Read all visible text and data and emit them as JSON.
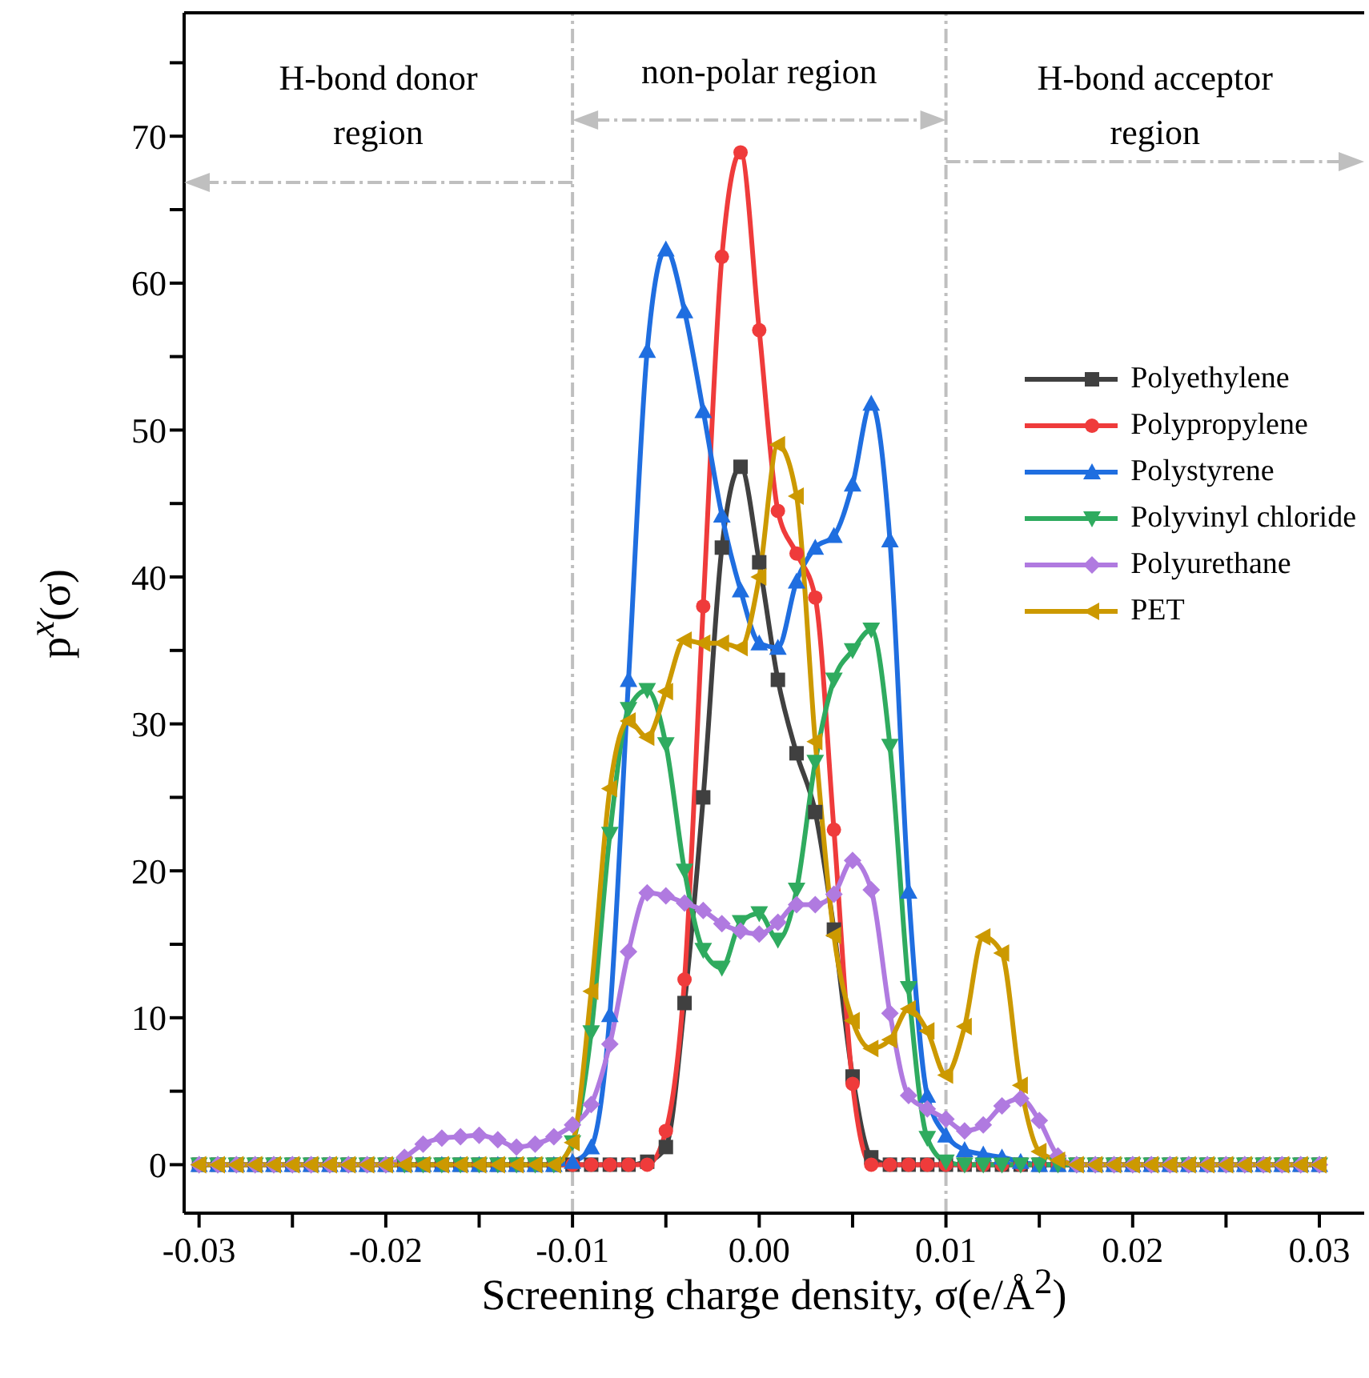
{
  "chart_data": {
    "type": "line",
    "xlabel": "Screening charge density, σ(e/Å$^{2}$)",
    "ylabel": "p$^{x}$(σ)",
    "x": [
      -0.03,
      -0.029,
      -0.028,
      -0.027,
      -0.026,
      -0.025,
      -0.024,
      -0.023,
      -0.022,
      -0.021,
      -0.02,
      -0.019,
      -0.018,
      -0.017,
      -0.016,
      -0.015,
      -0.014,
      -0.013,
      -0.012,
      -0.011,
      -0.01,
      -0.009,
      -0.008,
      -0.007,
      -0.006,
      -0.005,
      -0.004,
      -0.003,
      -0.002,
      -0.001,
      0,
      0.001,
      0.002,
      0.003,
      0.004,
      0.005,
      0.006,
      0.007,
      0.008,
      0.009,
      0.01,
      0.011,
      0.012,
      0.013,
      0.014,
      0.015,
      0.016,
      0.017,
      0.018,
      0.019,
      0.02,
      0.021,
      0.022,
      0.023,
      0.024,
      0.025,
      0.026,
      0.027,
      0.028,
      0.029,
      0.03
    ],
    "series": [
      {
        "name": "Polyethylene",
        "color": "#404040",
        "marker": "square",
        "values": [
          0,
          0,
          0,
          0,
          0,
          0,
          0,
          0,
          0,
          0,
          0,
          0,
          0,
          0,
          0,
          0,
          0,
          0,
          0,
          0,
          0,
          0,
          0,
          0,
          0.2,
          1.2,
          11,
          25,
          42,
          47.5,
          41,
          33,
          28,
          24,
          16,
          6,
          0.5,
          0,
          0,
          0,
          0,
          0,
          0,
          0,
          0,
          0,
          0,
          0,
          0,
          0,
          0,
          0,
          0,
          0,
          0,
          0,
          0,
          0,
          0,
          0,
          0
        ]
      },
      {
        "name": "Polypropylene",
        "color": "#ef3b3b",
        "marker": "circle",
        "values": [
          null,
          null,
          null,
          null,
          null,
          null,
          null,
          null,
          null,
          0,
          0,
          0,
          0,
          0,
          0,
          0,
          0,
          0,
          0,
          0,
          0,
          0,
          0,
          0,
          0,
          2.3,
          12.6,
          38,
          61.8,
          68.9,
          56.8,
          44.5,
          41.6,
          38.6,
          22.8,
          5.5,
          0,
          0,
          0,
          0,
          0,
          0,
          0,
          0,
          0,
          0,
          0,
          0,
          null,
          null,
          null,
          null,
          null,
          null,
          null,
          null,
          null,
          null,
          null,
          null,
          null
        ]
      },
      {
        "name": "Polystyrene",
        "color": "#1f6ee0",
        "marker": "triangle",
        "values": [
          0,
          0,
          0,
          0,
          0,
          0,
          0,
          0,
          0,
          0,
          0,
          0,
          0,
          0,
          0,
          0,
          0,
          0,
          0,
          0,
          0.2,
          1.2,
          10.2,
          33,
          55.4,
          62.3,
          58.1,
          51.3,
          44.2,
          39.1,
          35.5,
          35.2,
          39.7,
          42,
          42.8,
          46.3,
          51.8,
          42.5,
          18.6,
          4.7,
          2,
          1,
          0.7,
          0.5,
          0.2,
          0,
          0,
          0,
          0,
          0,
          0,
          0,
          0,
          0,
          0,
          0,
          0,
          0,
          0,
          0,
          0
        ]
      },
      {
        "name": "Polyvinyl chloride",
        "color": "#2fab5f",
        "marker": "triangle-down",
        "values": [
          0,
          0,
          0,
          0,
          0,
          0,
          0,
          0,
          0,
          0,
          0,
          0,
          0,
          0,
          0,
          0,
          0,
          0,
          0,
          0,
          1.5,
          9,
          22.5,
          31,
          32.3,
          28.6,
          20,
          14.6,
          13.4,
          16.5,
          17.1,
          15.3,
          18.7,
          27.4,
          33,
          35,
          36.4,
          28.5,
          12,
          1.8,
          0.2,
          0,
          0,
          0,
          0,
          0,
          0,
          0,
          0,
          0,
          0,
          0,
          0,
          0,
          0,
          0,
          0,
          0,
          0,
          0,
          0
        ]
      },
      {
        "name": "Polyurethane",
        "color": "#b07ae0",
        "marker": "diamond",
        "values": [
          0,
          0,
          0,
          0,
          0,
          0,
          0,
          0,
          0,
          0,
          0,
          0.5,
          1.4,
          1.8,
          1.9,
          2,
          1.7,
          1.2,
          1.4,
          1.9,
          2.7,
          4.1,
          8.2,
          14.5,
          18.5,
          18.3,
          17.8,
          17.3,
          16.4,
          15.9,
          15.7,
          16.5,
          17.7,
          17.7,
          18.4,
          20.7,
          18.7,
          10.3,
          4.7,
          3.8,
          3.1,
          2.3,
          2.7,
          4,
          4.5,
          3,
          0.6,
          0,
          0,
          0,
          0,
          0,
          0,
          0,
          0,
          0,
          0,
          0,
          0,
          0,
          0
        ]
      },
      {
        "name": "PET",
        "color": "#cc9900",
        "marker": "triangle-left",
        "values": [
          0,
          0,
          0,
          0,
          0,
          0,
          0,
          0,
          0,
          0,
          0,
          0,
          0,
          0,
          0,
          0,
          0,
          0,
          0,
          0,
          1.5,
          11.8,
          25.6,
          30.2,
          29.1,
          32.2,
          35.7,
          35.5,
          35.5,
          35.2,
          40,
          49,
          45.5,
          28.8,
          15.6,
          9.8,
          7.9,
          8.5,
          10.6,
          9.1,
          6.1,
          9.4,
          15.5,
          14.4,
          5.4,
          0.9,
          0.3,
          0,
          0,
          0,
          0,
          0,
          0,
          0,
          0,
          0,
          0,
          0,
          0,
          0,
          0
        ]
      }
    ],
    "xlim": [
      -0.0308,
      0.0324
    ],
    "xticks": [
      -0.03,
      {
        "value": -0.025,
        "label": null
      },
      -0.02,
      {
        "value": -0.015,
        "label": null
      },
      -0.01,
      {
        "value": -0.005,
        "label": null
      },
      {
        "value": 0,
        "label": "0.00"
      },
      {
        "value": 0.005,
        "label": null
      },
      0.01,
      {
        "value": 0.015,
        "label": null
      },
      0.02,
      {
        "value": 0.025,
        "label": null
      },
      0.03
    ],
    "ylim": [
      -3.3,
      78.4
    ],
    "yticks": [
      0,
      {
        "value": 5,
        "label": null
      },
      10,
      {
        "value": 15,
        "label": null
      },
      20,
      {
        "value": 25,
        "label": null
      },
      30,
      {
        "value": 35,
        "label": null
      },
      40,
      {
        "value": 45,
        "label": null
      },
      50,
      {
        "value": 55,
        "label": null
      },
      60,
      {
        "value": 65,
        "label": null
      },
      70,
      {
        "value": 75,
        "label": null
      }
    ],
    "ref_lines": [
      {
        "axis": "x",
        "value": -0.01,
        "color": "#bfbfbf",
        "line_style": "dashed"
      },
      {
        "axis": "x",
        "value": 0.01,
        "color": "#bfbfbf",
        "line_style": "dashed"
      }
    ],
    "annotations": [
      "H-bond donor region",
      "non-polar region",
      "H-bond acceptor region"
    ],
    "legend": "right",
    "grid": false,
    "line_style": "solid"
  }
}
